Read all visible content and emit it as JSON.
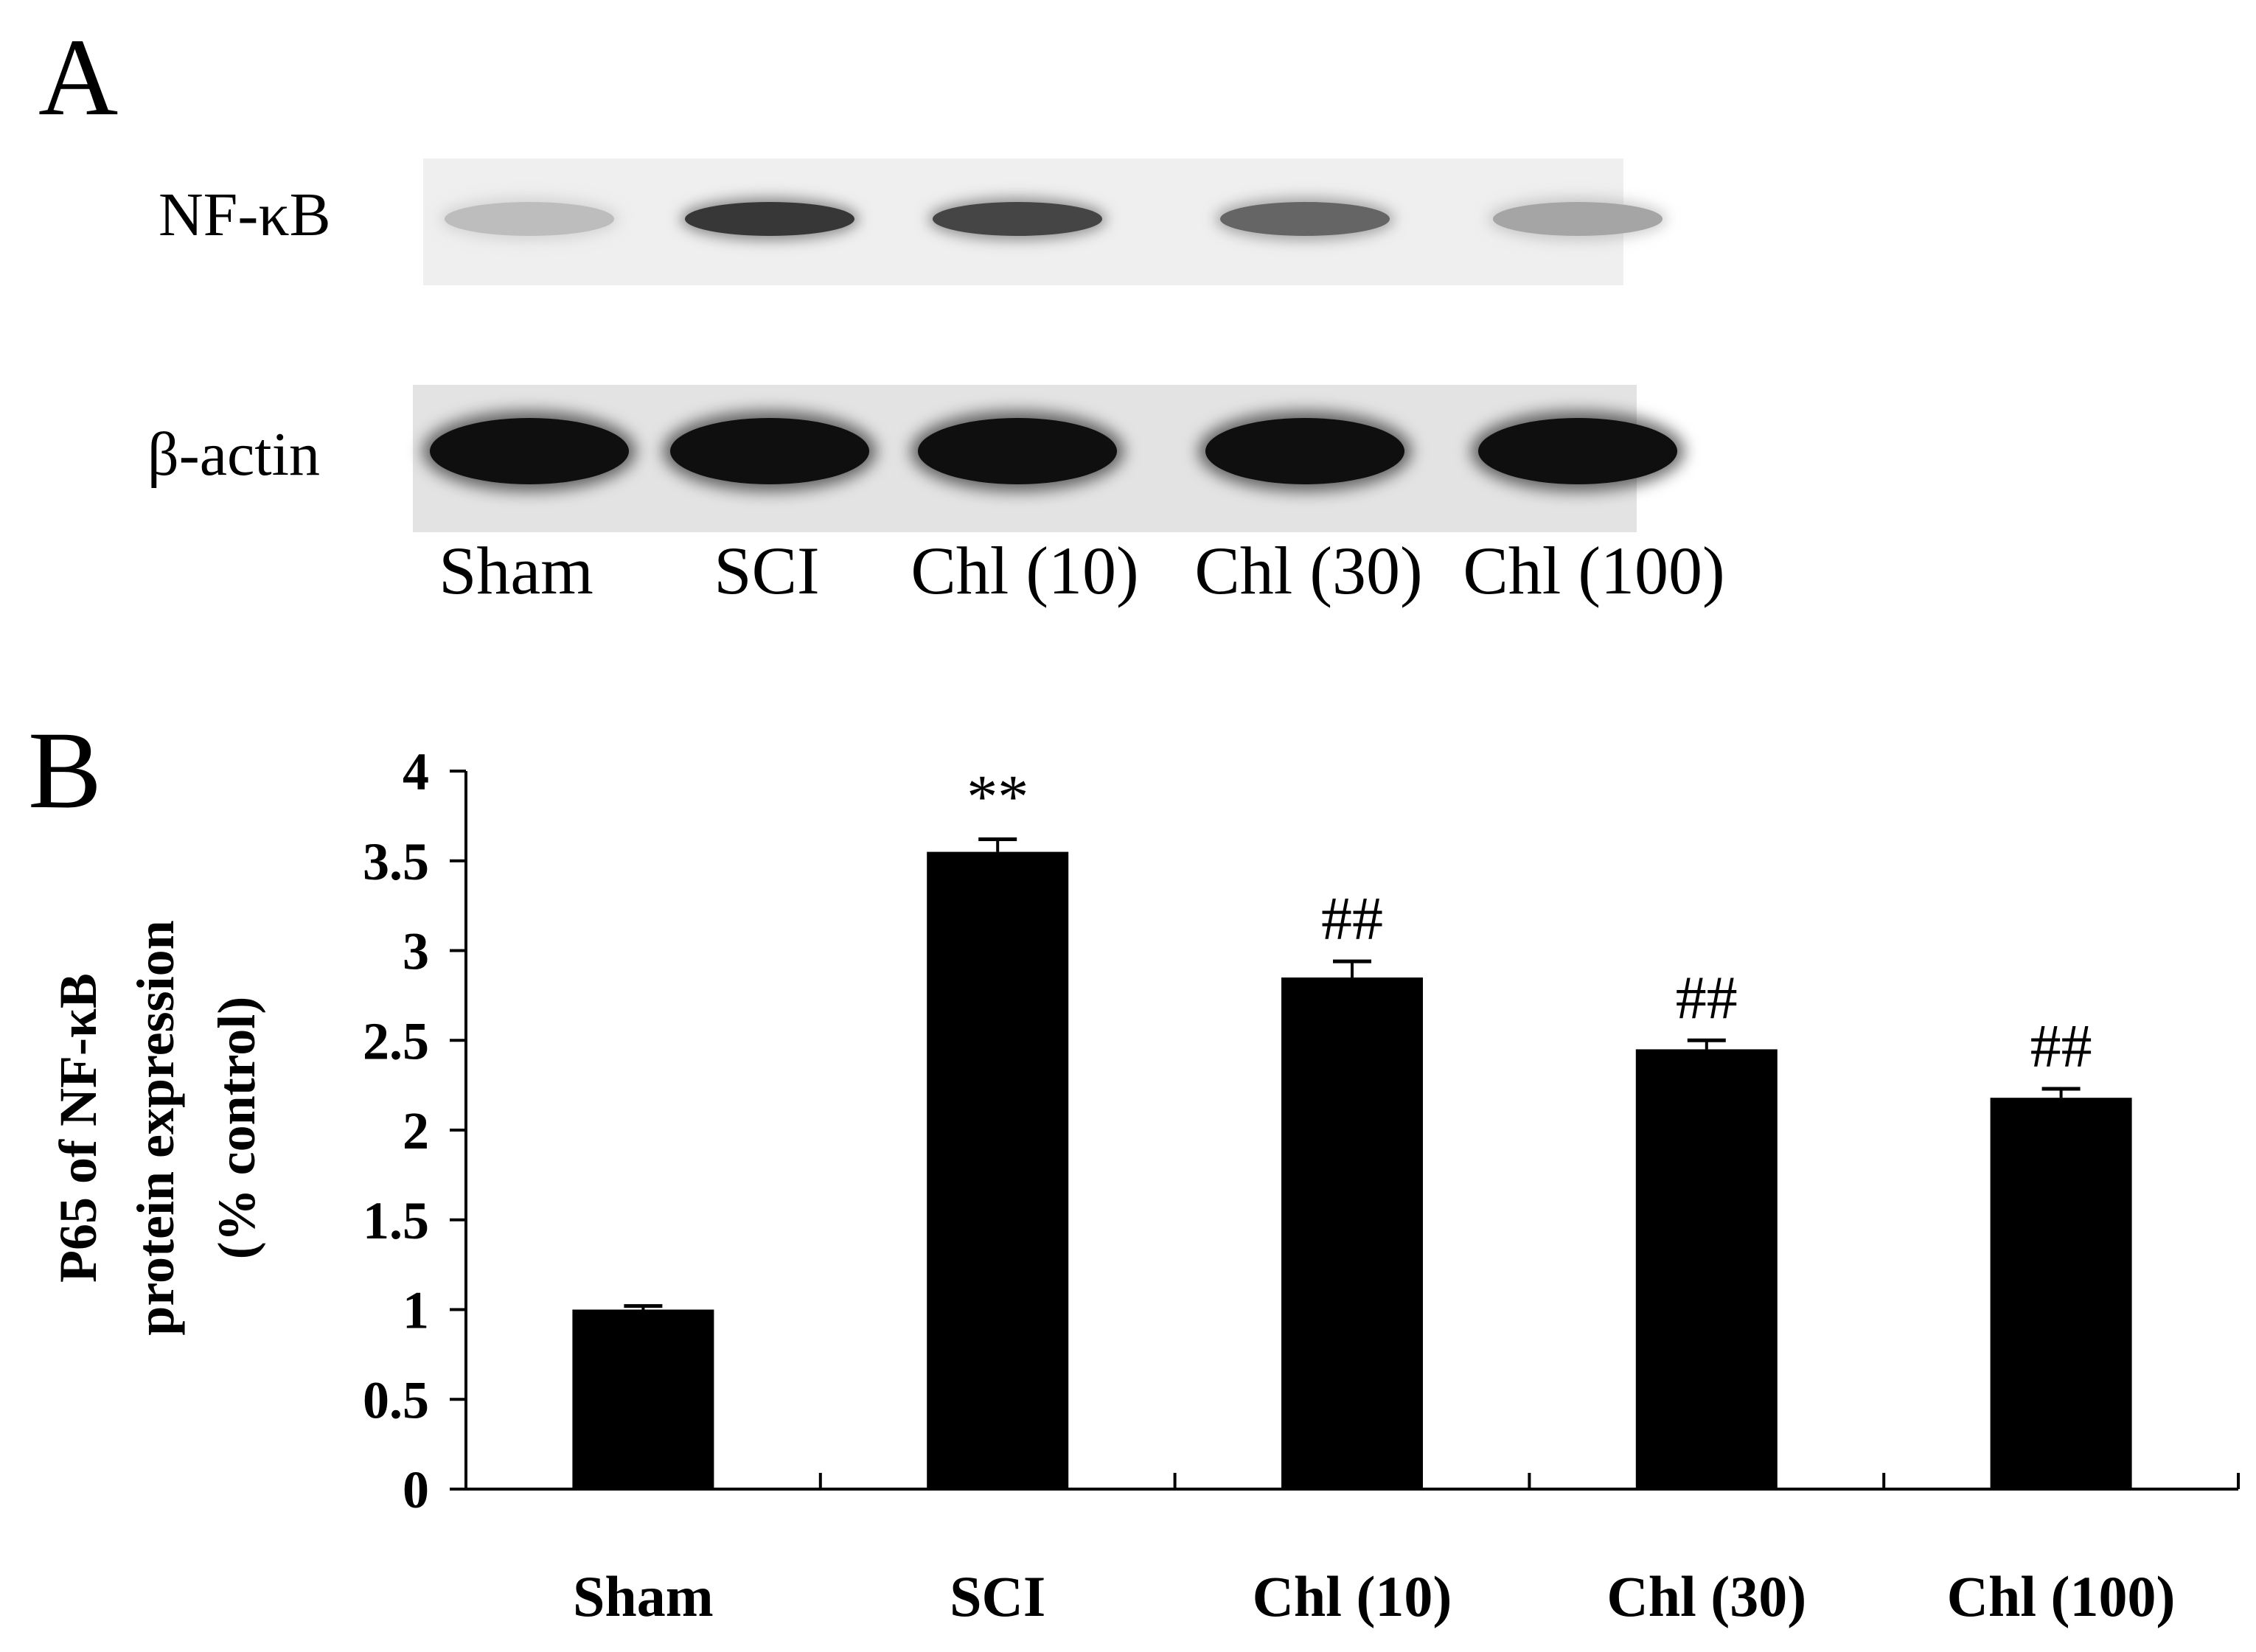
{
  "panel_a": {
    "letter": "A",
    "rows": [
      {
        "label": "NF-κB",
        "band_intensity": [
          0.18,
          0.85,
          0.78,
          0.62,
          0.3
        ]
      },
      {
        "label": "β-actin",
        "band_intensity": [
          1.0,
          1.0,
          1.0,
          1.0,
          1.0
        ]
      }
    ],
    "lanes": [
      "Sham",
      "SCI",
      "Chl (10)",
      "Chl (30)",
      "Chl (100)"
    ]
  },
  "panel_b": {
    "letter": "B"
  },
  "chart_data": {
    "type": "bar",
    "categories": [
      "Sham",
      "SCI",
      "Chl (10)",
      "Chl (30)",
      "Chl (100)"
    ],
    "values": [
      1.0,
      3.55,
      2.85,
      2.45,
      2.18
    ],
    "errors": [
      0.02,
      0.07,
      0.09,
      0.05,
      0.05
    ],
    "annotations": [
      "",
      "**",
      "##",
      "##",
      "##"
    ],
    "ylabel_lines": [
      "P65 of NF-κB",
      "protein expression",
      "(% control)"
    ],
    "xlabel": "",
    "ylim": [
      0,
      4
    ],
    "yticks": [
      "0",
      "0.5",
      "1",
      "1.5",
      "2",
      "2.5",
      "3",
      "3.5",
      "4"
    ],
    "grid": false,
    "bar_color": "#000000"
  }
}
